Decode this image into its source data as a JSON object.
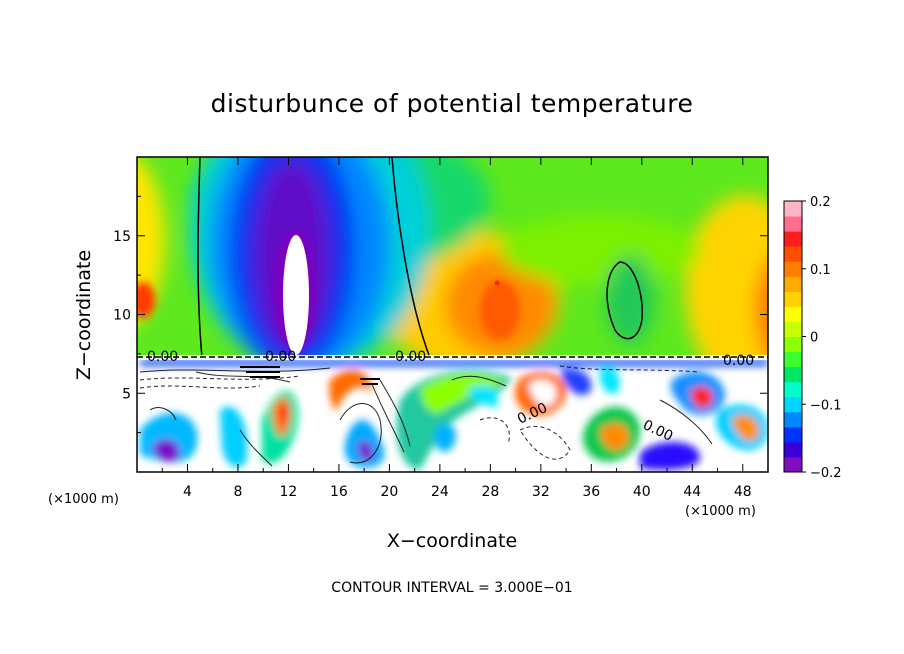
{
  "chart_data": {
    "type": "heatmap",
    "title": "disturbunce of potential temperature",
    "xlabel": "X−coordinate",
    "ylabel": "Z−coordinate",
    "x_unit": "(×1000 m)",
    "y_unit": "(×1000 m)",
    "xlim": [
      0,
      50
    ],
    "ylim": [
      0,
      20
    ],
    "x_ticks": [
      "4",
      "8",
      "12",
      "16",
      "20",
      "24",
      "28",
      "32",
      "36",
      "40",
      "44",
      "48"
    ],
    "y_ticks": [
      "5",
      "10",
      "15"
    ],
    "colorbar": {
      "min": -0.2,
      "max": 0.2,
      "ticks": [
        "0.2",
        "0.1",
        "0",
        "−0.1",
        "−0.2"
      ],
      "colors": [
        "#7f0fbf",
        "#3a00d8",
        "#0033ff",
        "#0088ff",
        "#00d5ff",
        "#00ffc8",
        "#00e664",
        "#3cff32",
        "#8cff00",
        "#c8ff00",
        "#ffff00",
        "#ffd200",
        "#ffaa00",
        "#ff7d00",
        "#ff5000",
        "#ff1e1e",
        "#ff6e8c",
        "#ffb4c8"
      ]
    },
    "contour_label": "0.00",
    "contour_interval": "CONTOUR INTERVAL = 3.000E−01",
    "grid": false
  }
}
